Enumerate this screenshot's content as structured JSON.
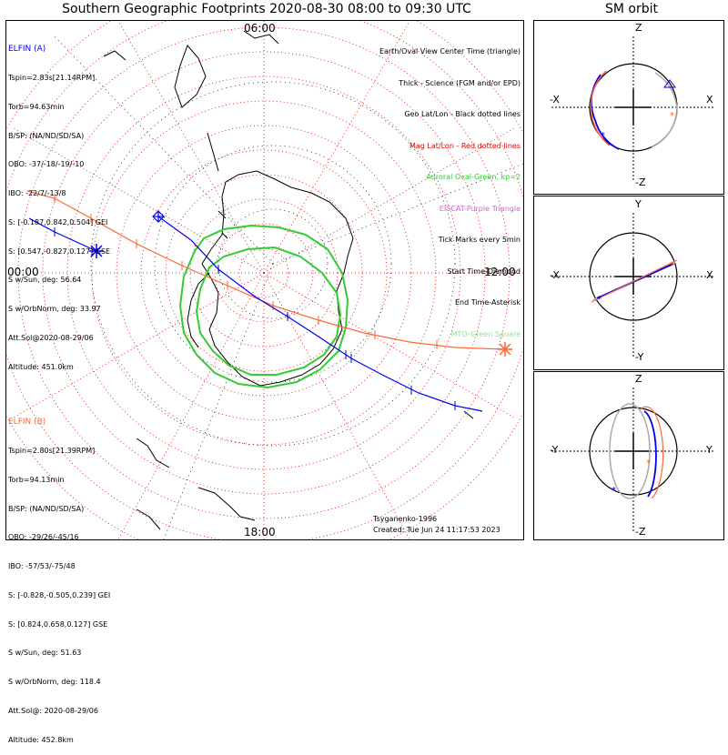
{
  "title": "Southern Geographic Footprints 2020-08-30 08:00 to 09:30 UTC",
  "orbit_title": "SM orbit",
  "time_labels": {
    "top": "06:00",
    "left": "00:00",
    "right": "12:00",
    "bottom": "18:00"
  },
  "elfin_a": {
    "name": "ELFIN (A)",
    "lines": [
      "Tspin=2.83s[21.14RPM]",
      "Torb=94.63min",
      "B/SP: (NA/ND/SD/SA)",
      "OBO: -37/-18/-19/-10",
      "IBO: -22/7/-13/8",
      "S: [-0.187,0.842,0.504] GEI",
      "S: [0.547,-0.827,0.127] GSE",
      "S w/Sun, deg: 56.64",
      "S w/OrbNorm, deg: 33.97",
      "Att.Sol@2020-08-29/06",
      "Altitude: 451.0km"
    ]
  },
  "elfin_b": {
    "name": "ELFIN (B)",
    "lines": [
      "Tspin=2.80s[21.39RPM]",
      "Torb=94.13min",
      "B/SP: (NA/ND/SD/SA)",
      "OBO: -29/26/-45/16",
      "IBO: -57/53/-75/48",
      "S: [-0.828,-0.505,0.239] GEI",
      "S: [0.824,0.658,0.127] GSE",
      "S w/Sun, deg: 51.63",
      "S w/OrbNorm, deg: 118.4",
      "Att.Sol@: 2020-08-29/06",
      "Altitude: 452.8km"
    ]
  },
  "legend": [
    {
      "text": "Earth/Oval View Center Time (triangle)",
      "color": "#000000"
    },
    {
      "text": "Thick - Science (FGM and/or EPD)",
      "color": "#000000"
    },
    {
      "text": "Geo Lat/Lon - Black dotted lines",
      "color": "#000000"
    },
    {
      "text": "Mag Lat/Lon - Red dotted lines",
      "color": "#e00000"
    },
    {
      "text": "Auroral Oval-Green, kp=2",
      "color": "#33cc33"
    },
    {
      "text": "EISCAT-Purple Triangle",
      "color": "#cc66cc"
    },
    {
      "text": "Tick Marks every 5min",
      "color": "#000000"
    },
    {
      "text": "Start Time-Diamond",
      "color": "#000000"
    },
    {
      "text": "End Time-Asterisk",
      "color": "#000000"
    },
    {
      "text": "MTO-Green Square",
      "color": "#99dd99"
    }
  ],
  "footer": {
    "model": "Tsyganenko-1996",
    "created": "Created: Tue Jun 24 11:17:53 2023"
  },
  "orbit_panels": [
    {
      "top": "Z",
      "bottom": "-Z",
      "left": "-X",
      "right": "X"
    },
    {
      "top": "Y",
      "bottom": "-Y",
      "left": "-X",
      "right": "X"
    },
    {
      "top": "Z",
      "bottom": "-Z",
      "left": "-Y",
      "right": "Y"
    }
  ],
  "colors": {
    "elfin_a": "#0000ee",
    "elfin_b": "#ff6633",
    "oval": "#33cc33",
    "grid_mag": "#e00000",
    "coast": "#000000"
  }
}
